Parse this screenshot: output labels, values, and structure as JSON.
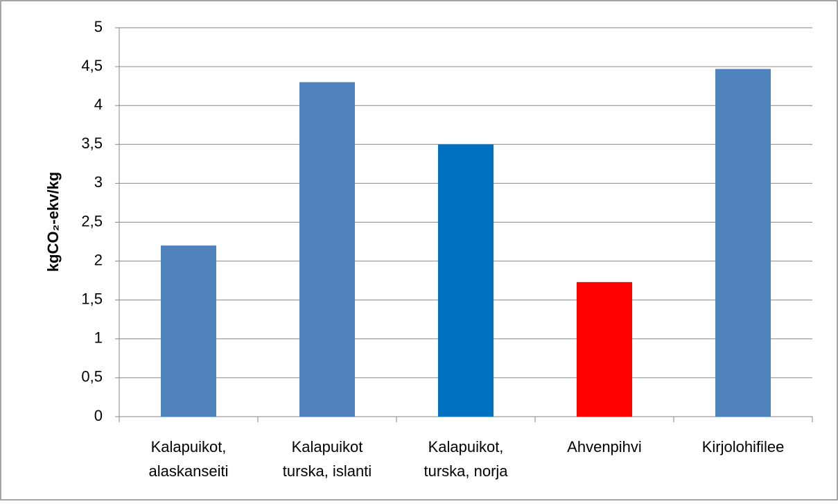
{
  "chart_data": {
    "type": "bar",
    "y_axis_label": "kgCO₂-ekv/kg",
    "categories": [
      [
        "Kalapuikot,",
        "alaskanseiti"
      ],
      [
        "Kalapuikot",
        "turska, islanti"
      ],
      [
        "Kalapuikot,",
        "turska, norja"
      ],
      [
        "Ahvenpihvi"
      ],
      [
        "Kirjolohifilee"
      ]
    ],
    "values": [
      2.2,
      4.3,
      3.5,
      1.73,
      4.47
    ],
    "colors": [
      "#4f81bd",
      "#4f81bd",
      "#0070c0",
      "#ff0000",
      "#4f81bd"
    ],
    "ylim": [
      0,
      5
    ],
    "yticks": [
      0,
      {
        "value": 0.5,
        "label": "0,5"
      },
      1,
      {
        "value": 1.5,
        "label": "1,5"
      },
      2,
      {
        "value": 2.5,
        "label": "2,5"
      },
      3,
      {
        "value": 3.5,
        "label": "3,5"
      },
      4,
      {
        "value": 4.5,
        "label": "4,5"
      },
      5
    ],
    "grid": true
  }
}
